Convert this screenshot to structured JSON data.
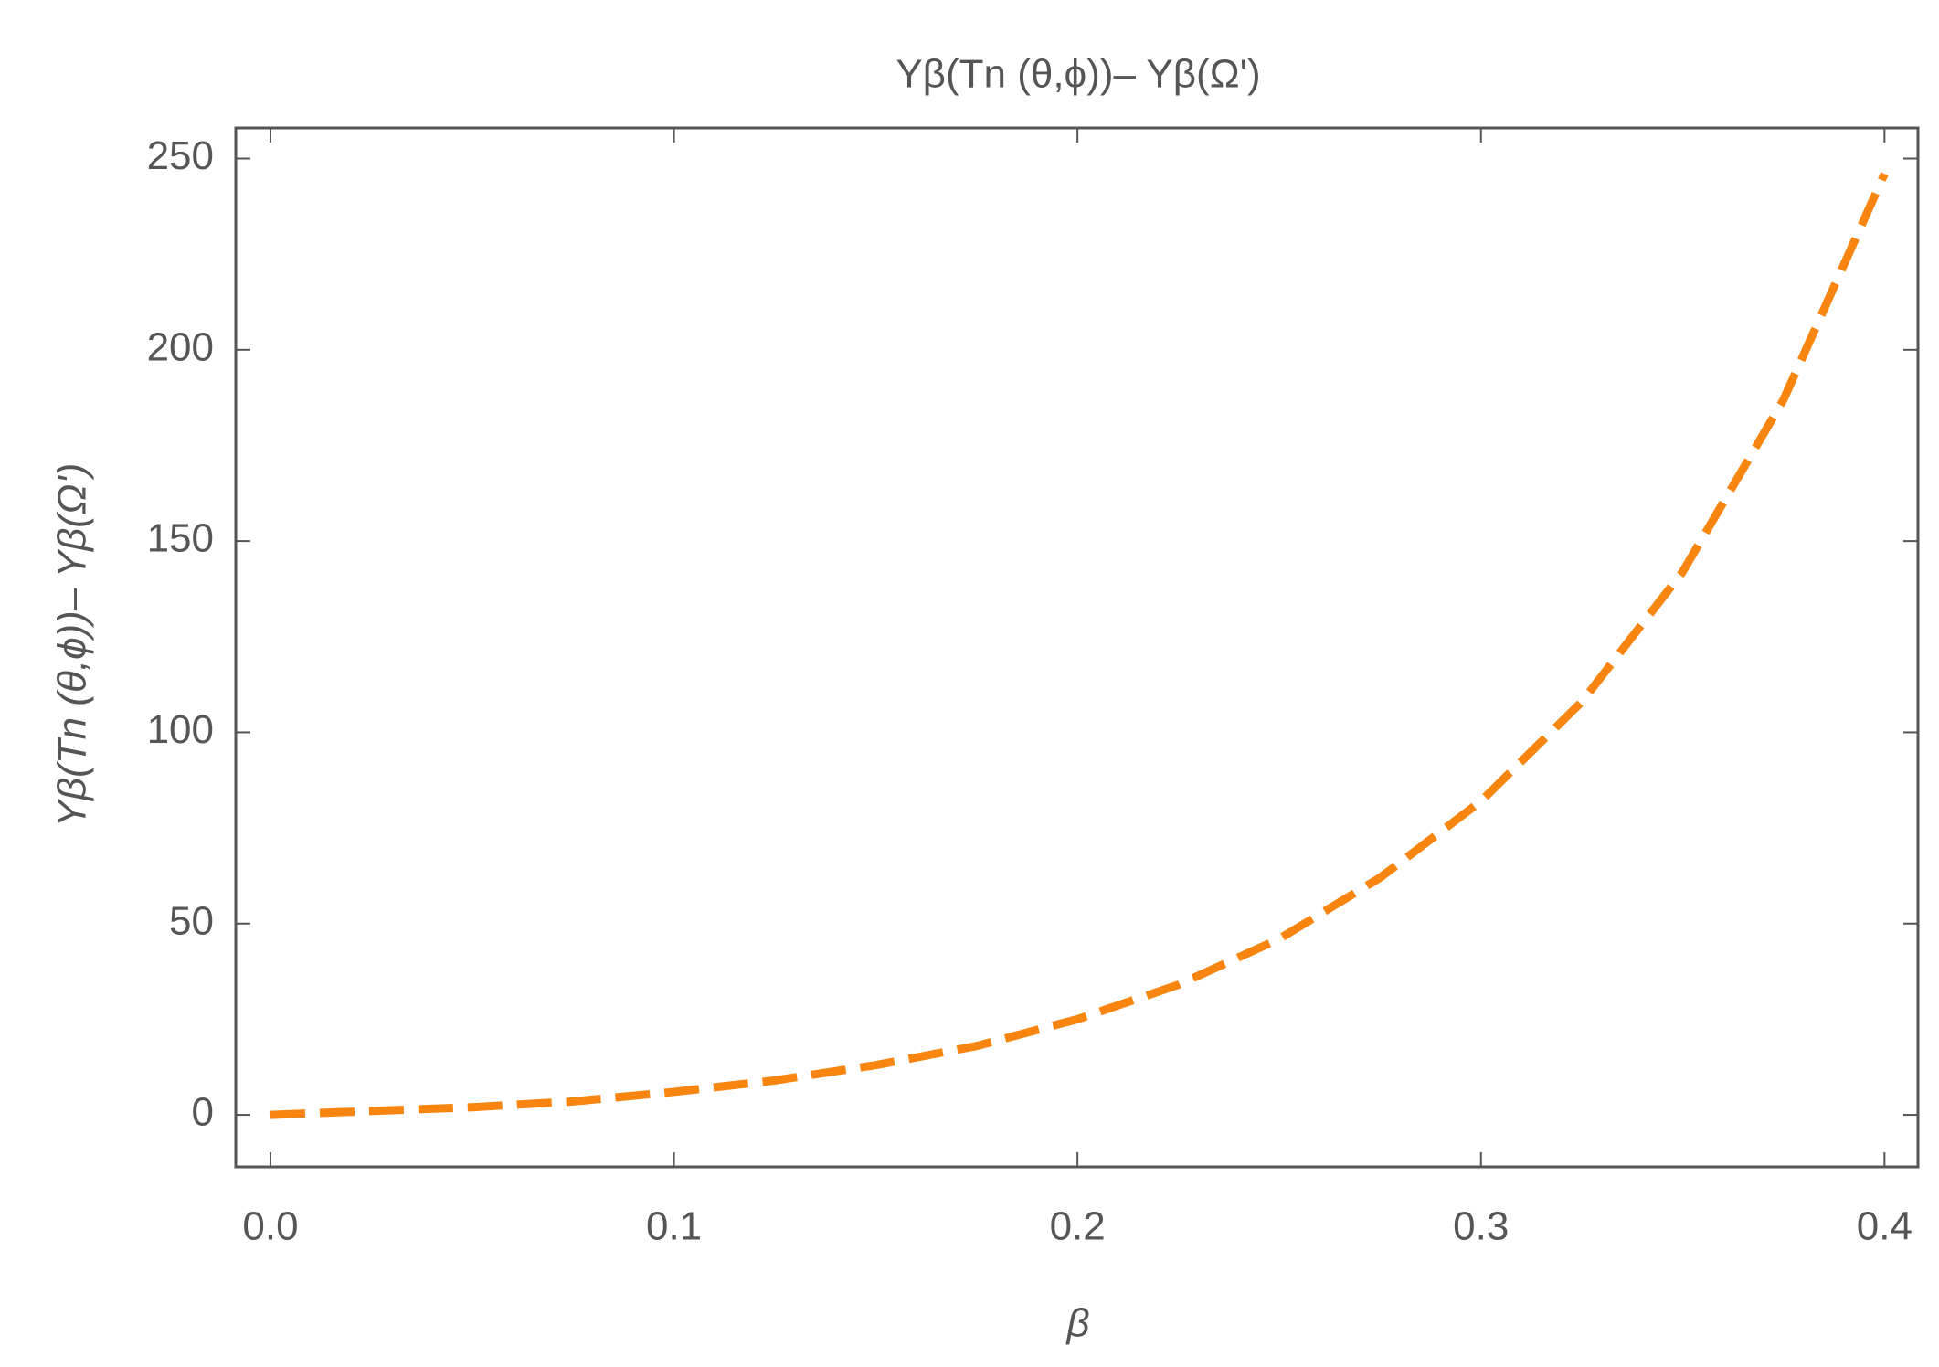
{
  "chart_data": {
    "type": "line",
    "title": "Yβ(Tn (θ,ϕ))– Yβ(Ω')",
    "x_label": "β",
    "y_label": "Yβ(Tn (θ,ϕ))– Yβ(Ω')",
    "x": [
      0,
      0.025,
      0.05,
      0.075,
      0.1,
      0.125,
      0.15,
      0.175,
      0.2,
      0.225,
      0.25,
      0.275,
      0.3,
      0.325,
      0.35,
      0.375,
      0.4
    ],
    "series": [
      {
        "color": "#f7850f",
        "dashed": true,
        "values": [
          0,
          1,
          2,
          3.5,
          6,
          9,
          13,
          18,
          25,
          34,
          46,
          62,
          82,
          108,
          142,
          187,
          246
        ]
      }
    ],
    "xlim": [
      -0.0086,
      0.4083
    ],
    "ylim": [
      -13.6,
      258
    ],
    "xticks": [
      {
        "value": 0,
        "label": "0.0"
      },
      0.1,
      0.2,
      0.3,
      0.4
    ],
    "yticks": [
      0,
      50,
      100,
      150,
      200,
      250
    ],
    "grid": false
  }
}
